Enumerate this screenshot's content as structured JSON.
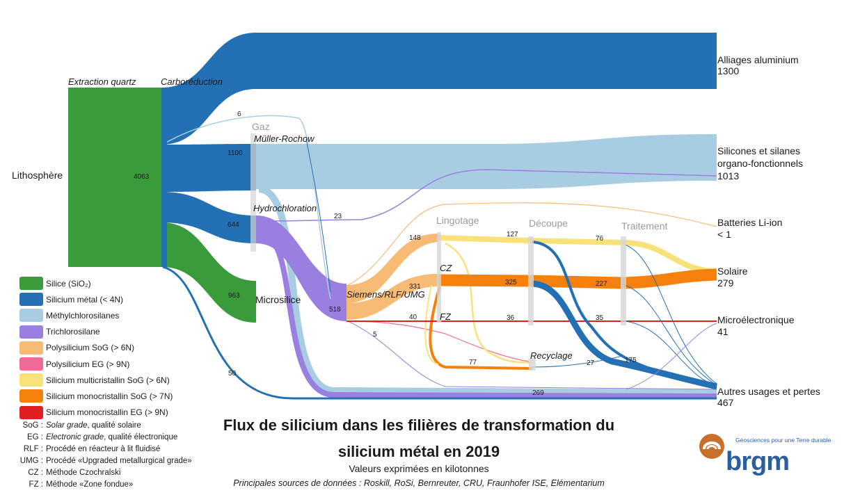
{
  "diagram": {
    "stage_titles": {
      "extraction": "Extraction quartz",
      "carboreduction": "Carboréduction",
      "muller_rochow": "Müller-Rochow",
      "hydrochloration": "Hydrochloration",
      "siemens": "Siemens/RLF/UMG",
      "cz": "CZ",
      "fz": "FZ",
      "recyclage": "Recyclage"
    },
    "gray_titles": {
      "gaz": "Gaz",
      "lingotage": "Lingotage",
      "decoupe": "Découpe",
      "traitement": "Traitement"
    },
    "nodes": {
      "lithosphere": "Lithosphère",
      "microsilice": "Microsilice"
    },
    "outputs": [
      {
        "lines": [
          "Alliages aluminium",
          "1300"
        ]
      },
      {
        "lines": [
          "Silicones et silanes",
          "organo-fonctionnels",
          "1013"
        ]
      },
      {
        "lines": [
          "Batteries Li-ion",
          "< 1"
        ]
      },
      {
        "lines": [
          "Solaire",
          "279"
        ]
      },
      {
        "lines": [
          "Microélectronique",
          "41"
        ]
      },
      {
        "lines": [
          "Autres usages et pertes",
          "467"
        ]
      }
    ],
    "values": {
      "v4063": "4063",
      "v1100": "1100",
      "v644": "644",
      "v963": "963",
      "v6": "6",
      "v23": "23",
      "v50": "50",
      "v518": "518",
      "v148": "148",
      "v331": "331",
      "v40": "40",
      "v5": "5",
      "v127": "127",
      "v325": "325",
      "v36": "36",
      "v76": "76",
      "v227": "227",
      "v35": "35",
      "v77": "77",
      "v27": "27",
      "v175": "175",
      "v269": "269"
    },
    "colors": {
      "silice": "#3a9b3a",
      "silicium_metal": "#2370b4",
      "methylchlorosilanes": "#a8cde2",
      "trichlorosilane": "#9a7ee0",
      "poly_sog": "#f7bb76",
      "poly_eg": "#f06a96",
      "multi_sog": "#f9e17a",
      "mono_sog": "#f5800c",
      "mono_eg": "#e02020"
    }
  },
  "legend": [
    {
      "label": "Silice (SiO₂)",
      "color": "#3a9b3a"
    },
    {
      "label": "Silicium métal (< 4N)",
      "color": "#2370b4"
    },
    {
      "label": "Méthylchlorosilanes",
      "color": "#a8cde2"
    },
    {
      "label": "Trichlorosilane",
      "color": "#9a7ee0"
    },
    {
      "label": "Polysilicium SoG (> 6N)",
      "color": "#f7bb76"
    },
    {
      "label": "Polysilicium EG (> 9N)",
      "color": "#f06a96"
    },
    {
      "label": "Silicium multicristallin SoG (> 6N)",
      "color": "#f9e17a"
    },
    {
      "label": "Silicium monocristallin SoG (> 7N)",
      "color": "#f5800c"
    },
    {
      "label": "Silicium monocristallin EG (> 9N)",
      "color": "#e02020"
    }
  ],
  "abbreviations": [
    {
      "key": "SoG :",
      "text_italic": "Solar grade",
      "text_rest": ", qualité solaire"
    },
    {
      "key": "EG :",
      "text_italic": "Electronic grade",
      "text_rest": ", qualité électronique"
    },
    {
      "key": "RLF :",
      "text_italic": "",
      "text_rest": "Procédé en réacteur à lit fluidisé"
    },
    {
      "key": "UMG :",
      "text_italic": "",
      "text_rest": "Procédé «Upgraded metallurgical grade»"
    },
    {
      "key": "CZ :",
      "text_italic": "",
      "text_rest": "Méthode Czochralski"
    },
    {
      "key": "FZ :",
      "text_italic": "",
      "text_rest": "Méthode «Zone fondue»"
    }
  ],
  "title_line1": "Flux de silicium dans les filières de transformation du",
  "title_line2": "silicium métal en 2019",
  "subtitle": "Valeurs exprimées en kilotonnes",
  "sources": "Principales sources de données : Roskill, RoSi, Bernreuter, CRU, Fraunhofer ISE, Elémentarium",
  "logo": {
    "tagline": "Géosciences pour une Terre durable",
    "wordmark": "brgm"
  }
}
